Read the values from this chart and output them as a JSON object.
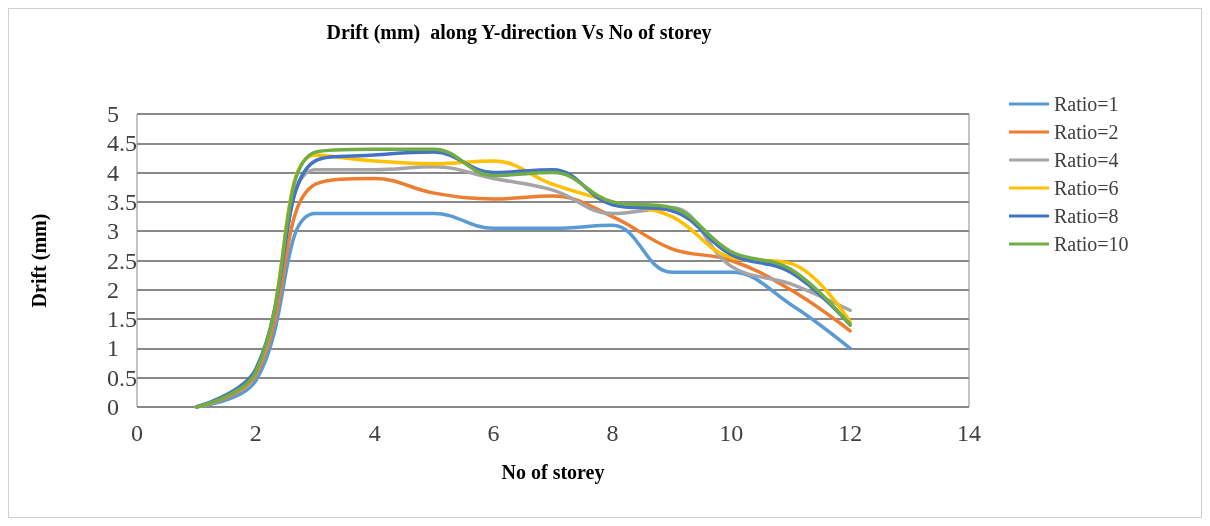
{
  "chart_data": {
    "type": "line",
    "title": "Drift (mm)  along Y-direction Vs No of storey",
    "xlabel": "No of storey",
    "ylabel": "Drift (mm)",
    "x": [
      1,
      2,
      3,
      4,
      5,
      6,
      7,
      8,
      9,
      10,
      11,
      12
    ],
    "xlim": [
      0,
      14
    ],
    "xticks": [
      0,
      2,
      4,
      6,
      8,
      10,
      12,
      14
    ],
    "ylim": [
      0,
      5
    ],
    "yticks": [
      0,
      0.5,
      1,
      1.5,
      2,
      2.5,
      3,
      3.5,
      4,
      4.5,
      5
    ],
    "grid": "y",
    "legend": "right",
    "marker": "none",
    "line_style": "solid",
    "series": [
      {
        "name": "Ratio=1",
        "color": "#5b9bd5",
        "values": [
          0,
          0.45,
          3.3,
          3.3,
          3.3,
          3.05,
          3.05,
          3.1,
          2.3,
          2.3,
          1.75,
          1.0
        ]
      },
      {
        "name": "Ratio=2",
        "color": "#ed7d31",
        "values": [
          0,
          0.55,
          3.8,
          3.9,
          3.65,
          3.55,
          3.6,
          3.25,
          2.7,
          2.5,
          2.0,
          1.3
        ]
      },
      {
        "name": "Ratio=4",
        "color": "#a5a5a5",
        "values": [
          0,
          0.6,
          4.05,
          4.05,
          4.1,
          3.9,
          3.7,
          3.3,
          3.4,
          2.4,
          2.1,
          1.65
        ]
      },
      {
        "name": "Ratio=6",
        "color": "#ffc000",
        "values": [
          0,
          0.6,
          4.3,
          4.2,
          4.15,
          4.2,
          3.8,
          3.5,
          3.25,
          2.55,
          2.45,
          1.45
        ]
      },
      {
        "name": "Ratio=8",
        "color": "#4472c4",
        "values": [
          0,
          0.65,
          4.2,
          4.3,
          4.35,
          4.0,
          4.05,
          3.45,
          3.35,
          2.6,
          2.3,
          1.4
        ]
      },
      {
        "name": "Ratio=10",
        "color": "#70ad47",
        "values": [
          0,
          0.6,
          4.35,
          4.4,
          4.4,
          3.95,
          4.0,
          3.5,
          3.4,
          2.65,
          2.35,
          1.4
        ]
      }
    ]
  }
}
